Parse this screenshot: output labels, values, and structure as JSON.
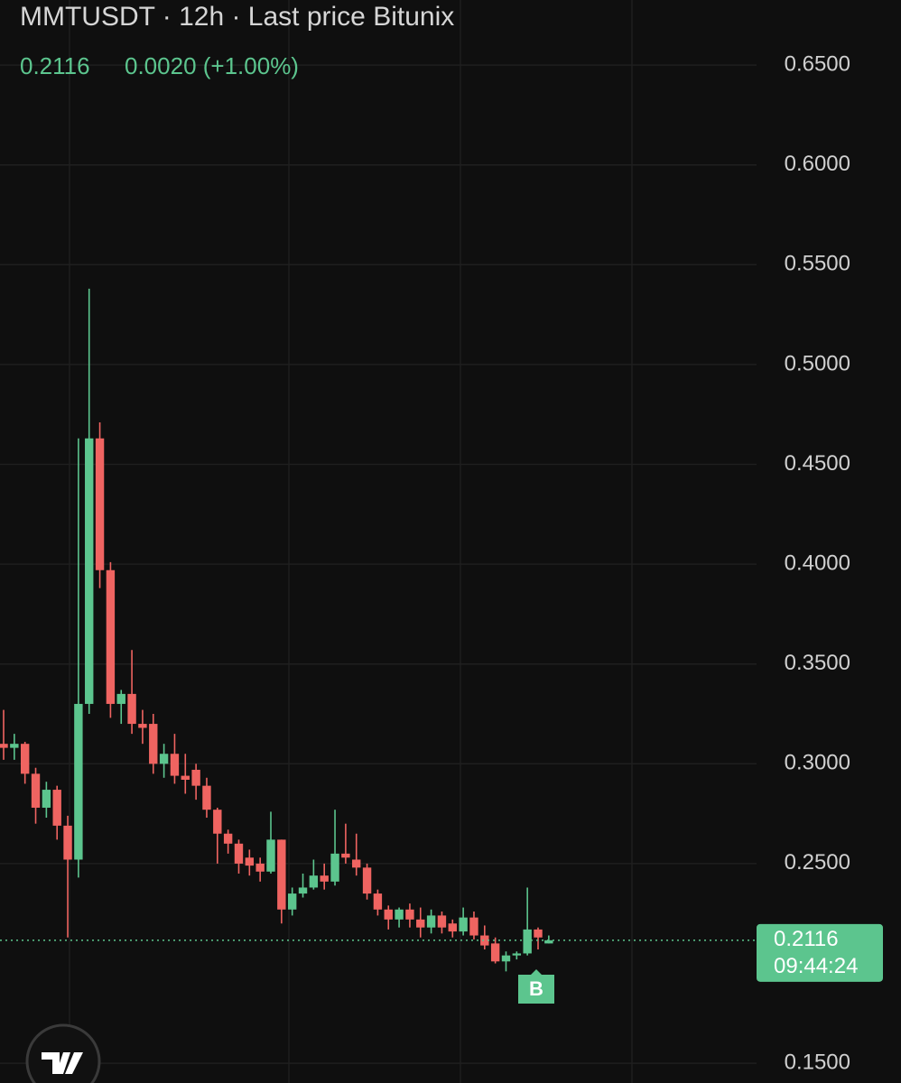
{
  "chart_data": {
    "type": "candlestick",
    "title": "MMTUSDT · 12h · Last price Bitunix",
    "last_price": "0.2116",
    "change": "0.0020 (+1.00%)",
    "ylim": [
      0.1401,
      0.6826
    ],
    "yticks": [
      {
        "value": 0.65,
        "label": "0.6500"
      },
      {
        "value": 0.6,
        "label": "0.6000"
      },
      {
        "value": 0.55,
        "label": "0.5500"
      },
      {
        "value": 0.5,
        "label": "0.5000"
      },
      {
        "value": 0.45,
        "label": "0.4500"
      },
      {
        "value": 0.4,
        "label": "0.4000"
      },
      {
        "value": 0.35,
        "label": "0.3500"
      },
      {
        "value": 0.3,
        "label": "0.3000"
      },
      {
        "value": 0.25,
        "label": "0.2500"
      },
      {
        "value": 0.15,
        "label": "0.1500"
      }
    ],
    "grid": true,
    "up_color": "#5cc58e",
    "down_color": "#ef6461",
    "price_line": {
      "value": 0.2116,
      "label": "0.2116",
      "countdown": "09:44:24"
    },
    "marker": "B",
    "open": [
      0.31,
      0.308,
      0.31,
      0.295,
      0.278,
      0.287,
      0.269,
      0.252,
      0.33,
      0.463,
      0.397,
      0.33,
      0.335,
      0.32,
      0.32,
      0.3,
      0.305,
      0.294,
      0.297,
      0.289,
      0.277,
      0.265,
      0.26,
      0.253,
      0.25,
      0.246,
      0.262,
      0.227,
      0.235,
      0.238,
      0.244,
      0.241,
      0.255,
      0.252,
      0.248,
      0.235,
      0.227,
      0.222,
      0.227,
      0.222,
      0.218,
      0.224,
      0.22,
      0.216,
      0.223,
      0.214,
      0.21,
      0.201,
      0.204,
      0.205,
      0.217,
      0.21
    ],
    "high": [
      0.327,
      0.315,
      0.311,
      0.298,
      0.291,
      0.289,
      0.274,
      0.463,
      0.538,
      0.471,
      0.401,
      0.337,
      0.357,
      0.327,
      0.325,
      0.31,
      0.315,
      0.305,
      0.3,
      0.293,
      0.278,
      0.267,
      0.262,
      0.257,
      0.253,
      0.276,
      0.262,
      0.238,
      0.245,
      0.252,
      0.25,
      0.277,
      0.27,
      0.265,
      0.25,
      0.237,
      0.229,
      0.228,
      0.23,
      0.228,
      0.227,
      0.226,
      0.222,
      0.228,
      0.226,
      0.219,
      0.213,
      0.206,
      0.206,
      0.238,
      0.218,
      0.214
    ],
    "low": [
      0.302,
      0.302,
      0.29,
      0.27,
      0.273,
      0.262,
      0.213,
      0.243,
      0.325,
      0.388,
      0.323,
      0.32,
      0.315,
      0.31,
      0.295,
      0.293,
      0.29,
      0.285,
      0.282,
      0.273,
      0.25,
      0.255,
      0.245,
      0.244,
      0.241,
      0.245,
      0.22,
      0.224,
      0.233,
      0.237,
      0.237,
      0.239,
      0.25,
      0.244,
      0.232,
      0.224,
      0.217,
      0.218,
      0.218,
      0.213,
      0.215,
      0.215,
      0.213,
      0.214,
      0.212,
      0.207,
      0.2,
      0.196,
      0.202,
      0.204,
      0.207,
      0.21
    ],
    "close": [
      0.308,
      0.31,
      0.295,
      0.278,
      0.287,
      0.269,
      0.252,
      0.33,
      0.463,
      0.397,
      0.33,
      0.335,
      0.32,
      0.318,
      0.3,
      0.305,
      0.294,
      0.292,
      0.289,
      0.277,
      0.265,
      0.26,
      0.25,
      0.249,
      0.246,
      0.262,
      0.227,
      0.235,
      0.238,
      0.244,
      0.241,
      0.255,
      0.253,
      0.248,
      0.235,
      0.227,
      0.222,
      0.227,
      0.222,
      0.218,
      0.224,
      0.218,
      0.216,
      0.223,
      0.214,
      0.209,
      0.201,
      0.204,
      0.205,
      0.217,
      0.213,
      0.2116
    ]
  }
}
